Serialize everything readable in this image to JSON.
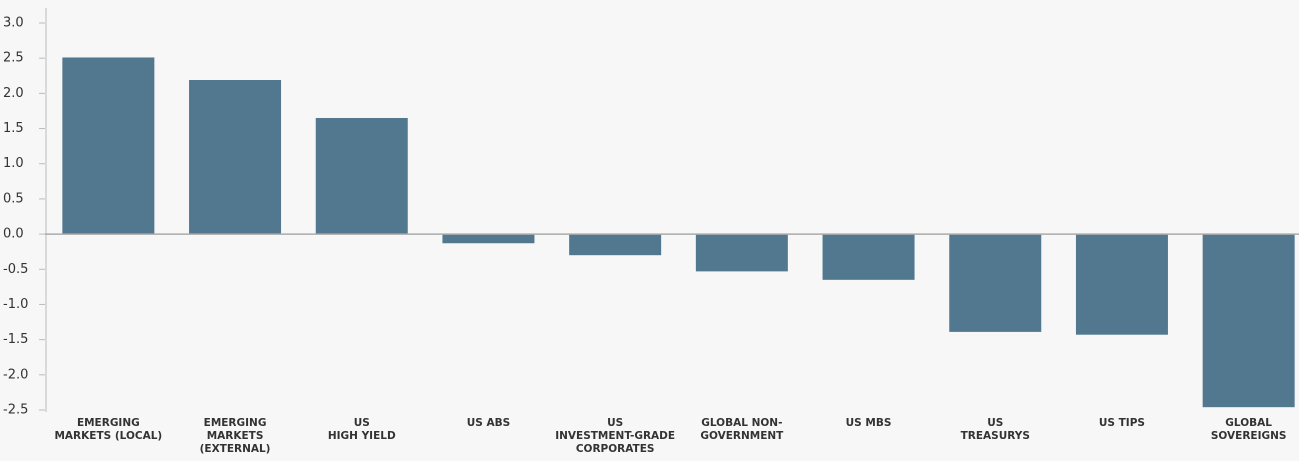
{
  "chart_data": {
    "type": "bar",
    "categories": [
      "EMERGING\nMARKETS (LOCAL)",
      "EMERGING\nMARKETS\n(EXTERNAL)",
      "US\nHIGH YIELD",
      "US ABS",
      "US\nINVESTMENT-GRADE\nCORPORATES",
      "GLOBAL NON-\nGOVERNMENT",
      "US MBS",
      "US\nTREASURYS",
      "US TIPS",
      "GLOBAL\nSOVEREIGNS"
    ],
    "values": [
      2.51,
      2.19,
      1.65,
      -0.13,
      -0.3,
      -0.53,
      -0.65,
      -1.39,
      -1.43,
      -2.46
    ],
    "color": "#52788f",
    "ylim": [
      -2.5,
      3.0
    ],
    "yticks": [
      {
        "value": 3.0,
        "label": "3.0"
      },
      2.5,
      {
        "value": 2.0,
        "label": "2.0"
      },
      1.5,
      {
        "value": 1.0,
        "label": "1.0"
      },
      0.5,
      {
        "value": 0.0,
        "label": "0.0"
      },
      -0.5,
      {
        "value": -1.0,
        "label": "-1.0"
      },
      -1.5,
      {
        "value": -2.0,
        "label": "-2.0"
      },
      -2.5
    ]
  }
}
